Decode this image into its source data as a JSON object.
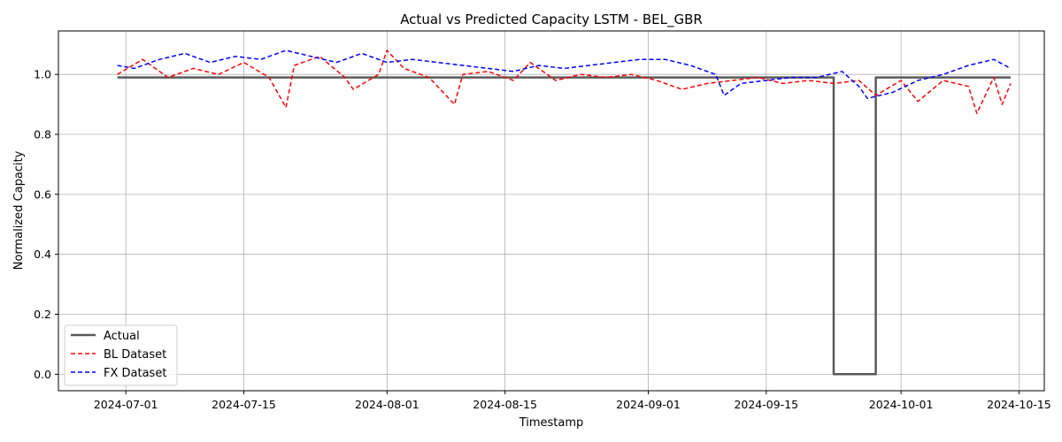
{
  "chart_data": {
    "type": "line",
    "title": "Actual vs Predicted Capacity LSTM - BEL_GBR",
    "xlabel": "Timestamp",
    "ylabel": "Normalized Capacity",
    "x_range": [
      "2024-06-23",
      "2024-10-18"
    ],
    "ylim": [
      -0.055,
      1.145
    ],
    "x_ticks": [
      "2024-07-01",
      "2024-07-15",
      "2024-08-01",
      "2024-08-15",
      "2024-09-01",
      "2024-09-15",
      "2024-10-01",
      "2024-10-15"
    ],
    "y_ticks": [
      0.0,
      0.2,
      0.4,
      0.6,
      0.8,
      1.0
    ],
    "y_tick_labels": [
      "0.0",
      "0.2",
      "0.4",
      "0.6",
      "0.8",
      "1.0"
    ],
    "grid": true,
    "legend_position": "lower-left",
    "series": [
      {
        "name": "Actual",
        "color": "#595959",
        "style": "solid",
        "x": [
          "2024-06-30",
          "2024-09-23",
          "2024-09-23",
          "2024-09-28",
          "2024-09-28",
          "2024-10-14"
        ],
        "values": [
          0.99,
          0.99,
          0.0,
          0.0,
          0.99,
          0.99
        ]
      },
      {
        "name": "BL Dataset",
        "color": "#ff0000",
        "style": "dashed",
        "x": [
          "2024-06-30",
          "2024-07-03",
          "2024-07-06",
          "2024-07-09",
          "2024-07-12",
          "2024-07-15",
          "2024-07-18",
          "2024-07-20",
          "2024-07-21",
          "2024-07-24",
          "2024-07-27",
          "2024-07-28",
          "2024-07-31",
          "2024-08-01",
          "2024-08-03",
          "2024-08-06",
          "2024-08-09",
          "2024-08-10",
          "2024-08-13",
          "2024-08-16",
          "2024-08-18",
          "2024-08-21",
          "2024-08-24",
          "2024-08-27",
          "2024-08-30",
          "2024-09-02",
          "2024-09-05",
          "2024-09-08",
          "2024-09-11",
          "2024-09-14",
          "2024-09-17",
          "2024-09-20",
          "2024-09-23",
          "2024-09-26",
          "2024-09-28",
          "2024-10-01",
          "2024-10-03",
          "2024-10-06",
          "2024-10-09",
          "2024-10-10",
          "2024-10-12",
          "2024-10-13",
          "2024-10-14"
        ],
        "values": [
          1.0,
          1.05,
          0.99,
          1.02,
          1.0,
          1.04,
          0.99,
          0.89,
          1.03,
          1.06,
          0.99,
          0.95,
          1.0,
          1.08,
          1.02,
          0.99,
          0.9,
          1.0,
          1.01,
          0.98,
          1.04,
          0.98,
          1.0,
          0.99,
          1.0,
          0.98,
          0.95,
          0.97,
          0.98,
          0.99,
          0.97,
          0.98,
          0.97,
          0.98,
          0.93,
          0.98,
          0.91,
          0.98,
          0.96,
          0.87,
          0.99,
          0.9,
          0.97
        ]
      },
      {
        "name": "FX Dataset",
        "color": "#0000ff",
        "style": "dashed",
        "x": [
          "2024-06-30",
          "2024-07-02",
          "2024-07-05",
          "2024-07-08",
          "2024-07-11",
          "2024-07-14",
          "2024-07-17",
          "2024-07-20",
          "2024-07-23",
          "2024-07-26",
          "2024-07-29",
          "2024-08-01",
          "2024-08-04",
          "2024-08-07",
          "2024-08-10",
          "2024-08-13",
          "2024-08-16",
          "2024-08-19",
          "2024-08-22",
          "2024-08-25",
          "2024-08-28",
          "2024-08-31",
          "2024-09-03",
          "2024-09-06",
          "2024-09-09",
          "2024-09-10",
          "2024-09-12",
          "2024-09-15",
          "2024-09-18",
          "2024-09-21",
          "2024-09-24",
          "2024-09-26",
          "2024-09-27",
          "2024-09-30",
          "2024-10-03",
          "2024-10-06",
          "2024-10-09",
          "2024-10-12",
          "2024-10-14"
        ],
        "values": [
          1.03,
          1.02,
          1.05,
          1.07,
          1.04,
          1.06,
          1.05,
          1.08,
          1.06,
          1.04,
          1.07,
          1.04,
          1.05,
          1.04,
          1.03,
          1.02,
          1.01,
          1.03,
          1.02,
          1.03,
          1.04,
          1.05,
          1.05,
          1.03,
          1.0,
          0.93,
          0.97,
          0.98,
          0.99,
          0.99,
          1.01,
          0.96,
          0.92,
          0.94,
          0.98,
          1.0,
          1.03,
          1.05,
          1.02
        ]
      }
    ]
  }
}
